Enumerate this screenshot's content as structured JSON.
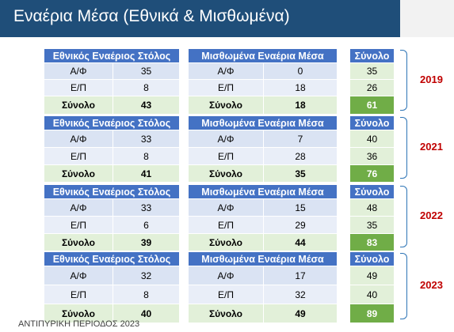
{
  "title": "Εναέρια Μέσα (Εθνικά & Μισθωμένα)",
  "labels": {
    "national": "Εθνικός Εναέριος Στόλος",
    "leased": "Μισθωμένα Εναέρια Μέσα",
    "total_header": "Σύνολο",
    "af": "Α/Φ",
    "ep": "Ε/Π",
    "total": "Σύνολο"
  },
  "years": [
    {
      "year": "2019",
      "national": {
        "af": "35",
        "ep": "8",
        "total": "43"
      },
      "leased": {
        "af": "0",
        "ep": "18",
        "total": "18"
      },
      "sum": {
        "af": "35",
        "ep": "26",
        "total": "61"
      }
    },
    {
      "year": "2021",
      "national": {
        "af": "33",
        "ep": "8",
        "total": "41"
      },
      "leased": {
        "af": "7",
        "ep": "28",
        "total": "35"
      },
      "sum": {
        "af": "40",
        "ep": "36",
        "total": "76"
      }
    },
    {
      "year": "2022",
      "national": {
        "af": "33",
        "ep": "6",
        "total": "39"
      },
      "leased": {
        "af": "15",
        "ep": "29",
        "total": "44"
      },
      "sum": {
        "af": "48",
        "ep": "35",
        "total": "83"
      }
    },
    {
      "year": "2023",
      "national": {
        "af": "32",
        "ep": "8",
        "total": "40"
      },
      "leased": {
        "af": "17",
        "ep": "32",
        "total": "49"
      },
      "sum": {
        "af": "49",
        "ep": "40",
        "total": "89"
      }
    }
  ],
  "footer": "ΑΝΤΙΠΥΡΙΚΗ ΠΕΡΙΟΔΟΣ 2023",
  "colors": {
    "header_bg": "#1f4e79",
    "table_header": "#4472c4",
    "total_green": "#70ad47",
    "year_red": "#c00000"
  }
}
